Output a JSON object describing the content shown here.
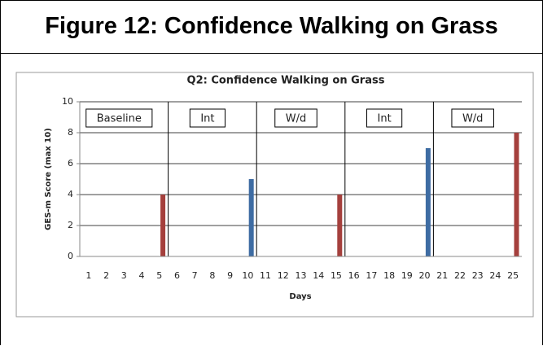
{
  "heading": "Figure 12: Confidence Walking on Grass",
  "chart_data": {
    "type": "bar",
    "title": "Q2: Confidence Walking on Grass",
    "x_label": "Days",
    "y_label": "GES-m Score (max 10)",
    "categories": [
      "1",
      "2",
      "3",
      "4",
      "5",
      "6",
      "7",
      "8",
      "9",
      "10",
      "11",
      "12",
      "13",
      "14",
      "15",
      "16",
      "17",
      "18",
      "19",
      "20",
      "21",
      "22",
      "23",
      "24",
      "25"
    ],
    "values": [
      null,
      null,
      null,
      null,
      4,
      null,
      null,
      null,
      null,
      5,
      null,
      null,
      null,
      null,
      4,
      null,
      null,
      null,
      null,
      7,
      null,
      null,
      null,
      null,
      8
    ],
    "bar_colors": [
      null,
      null,
      null,
      null,
      "#a5403d",
      null,
      null,
      null,
      null,
      "#3e6ca3",
      null,
      null,
      null,
      null,
      "#a5403d",
      null,
      null,
      null,
      null,
      "#3e6ca3",
      null,
      null,
      null,
      null,
      "#a5403d"
    ],
    "phases": [
      {
        "label": "Baseline",
        "days": [
          1,
          5
        ]
      },
      {
        "label": "Int",
        "days": [
          6,
          10
        ]
      },
      {
        "label": "W/d",
        "days": [
          11,
          15
        ]
      },
      {
        "label": "Int",
        "days": [
          16,
          20
        ]
      },
      {
        "label": "W/d",
        "days": [
          21,
          25
        ]
      }
    ],
    "ylim": [
      0,
      10
    ],
    "yticks": [
      0,
      2,
      4,
      6,
      8,
      10
    ],
    "grid": true
  }
}
